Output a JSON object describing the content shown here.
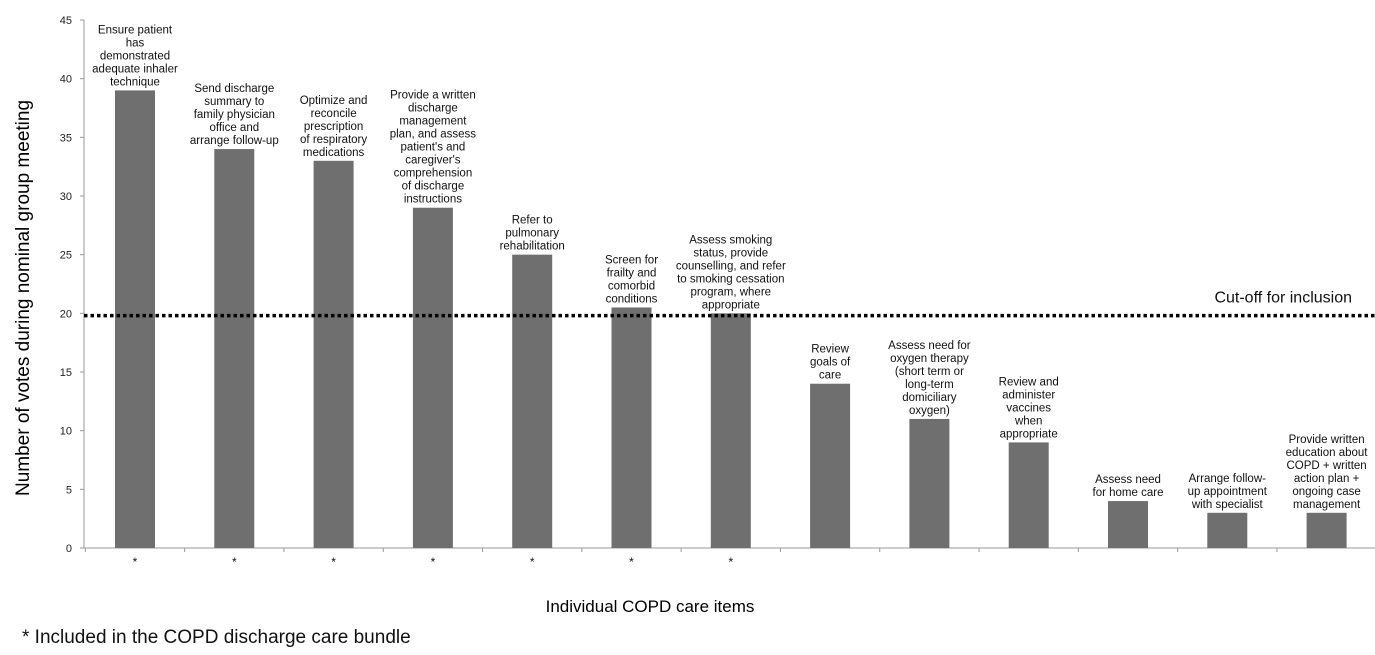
{
  "chart_data": {
    "type": "bar",
    "ylabel": "Number of votes during nominal group meeting",
    "xlabel": "Individual COPD care items",
    "ylim": [
      0,
      45
    ],
    "yticks": [
      0,
      5,
      10,
      15,
      20,
      25,
      30,
      35,
      40,
      45
    ],
    "grid": false,
    "bar_color": "#6f6f6f",
    "categories": [
      "Ensure patient has demonstrated adequate inhaler technique",
      "Send discharge summary to family physician office and arrange follow-up",
      "Optimize and reconcile prescription of respiratory medications",
      "Provide a written discharge management plan, and assess patient's and caregiver's comprehension of discharge instructions",
      "Refer to pulmonary rehabilitation",
      "Screen for frailty and comorbid conditions",
      "Assess smoking status, provide counselling, and refer to smoking cessation program, where appropriate",
      "Review goals of care",
      "Assess need for oxygen therapy (short term or long-term domiciliary oxygen)",
      "Review and administer vaccines when appropriate",
      "Assess need for home care",
      "Arrange follow-up appointment with specialist",
      "Provide written education about COPD + written action plan + ongoing case management"
    ],
    "label_lines": [
      [
        "Ensure patient",
        "has",
        "demonstrated",
        "adequate inhaler",
        "technique"
      ],
      [
        "Send discharge",
        "summary to",
        "family physician",
        "office and",
        "arrange follow-up"
      ],
      [
        "Optimize and",
        "reconcile",
        "prescription",
        "of respiratory",
        "medications"
      ],
      [
        "Provide a written",
        "discharge",
        "management",
        "plan, and assess",
        "patient's and",
        "caregiver's",
        "comprehension",
        "of discharge",
        "instructions"
      ],
      [
        "Refer to",
        "pulmonary",
        "rehabilitation"
      ],
      [
        "Screen for",
        "frailty and",
        "comorbid",
        "conditions"
      ],
      [
        "Assess smoking",
        "status, provide",
        "counselling, and refer",
        "to smoking cessation",
        "program, where",
        "appropriate"
      ],
      [
        "Review",
        "goals of",
        "care"
      ],
      [
        "Assess need for",
        "oxygen therapy",
        "(short term or",
        "long-term",
        "domiciliary",
        "oxygen)"
      ],
      [
        "Review and",
        "administer",
        "vaccines",
        "when",
        "appropriate"
      ],
      [
        "Assess need",
        "for home care"
      ],
      [
        "Arrange follow-",
        "up appointment",
        "with specialist"
      ],
      [
        "Provide written",
        "education about",
        "COPD + written",
        "action plan +",
        "ongoing case",
        "management"
      ]
    ],
    "values": [
      39,
      34,
      33,
      29,
      25,
      20.5,
      20,
      14,
      11,
      9,
      4,
      3,
      3
    ],
    "included": [
      true,
      true,
      true,
      true,
      true,
      true,
      true,
      false,
      false,
      false,
      false,
      false,
      false
    ],
    "included_marker": "*",
    "cutoff": {
      "value": 19.8,
      "label": "Cut-off for inclusion"
    }
  },
  "footnote": "* Included in the COPD discharge care bundle"
}
